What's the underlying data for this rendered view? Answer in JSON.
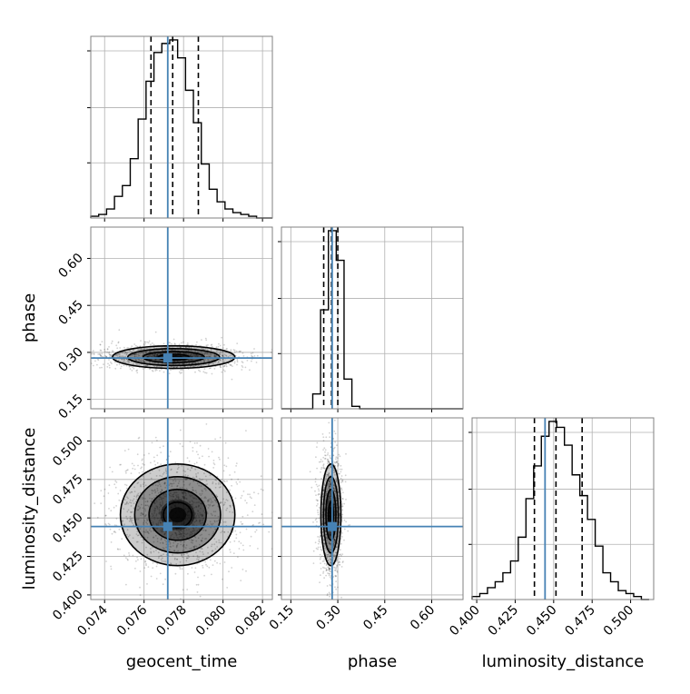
{
  "chart_data": {
    "type": "corner",
    "parameters": [
      "geocent_time",
      "phase",
      "luminosity_distance"
    ],
    "truths": {
      "geocent_time": 0.0772,
      "phase": 0.282,
      "luminosity_distance": 0.4444
    },
    "quantiles": {
      "geocent_time": [
        0.07635,
        0.07745,
        0.07875
      ],
      "phase": [
        0.255,
        0.28,
        0.3
      ],
      "luminosity_distance": [
        0.4375,
        0.4515,
        0.4685
      ]
    },
    "axes": {
      "geocent_time": {
        "range": [
          0.0733,
          0.0825
        ],
        "ticks": [
          0.074,
          0.076,
          0.078,
          0.08,
          0.082
        ],
        "tick_labels": [
          "0.074",
          "0.076",
          "0.078",
          "0.080",
          "0.082"
        ]
      },
      "phase": {
        "range": [
          0.12,
          0.7
        ],
        "ticks": [
          0.15,
          0.3,
          0.45,
          0.6
        ],
        "tick_labels": [
          "0.15",
          "0.30",
          "0.45",
          "0.60"
        ]
      },
      "luminosity_distance": {
        "range": [
          0.397,
          0.515
        ],
        "ticks": [
          0.4,
          0.425,
          0.45,
          0.475,
          0.5
        ],
        "tick_labels": [
          "0.400",
          "0.425",
          "0.450",
          "0.475",
          "0.500"
        ]
      }
    },
    "histograms": {
      "geocent_time": {
        "edges": [
          0.0733,
          0.0737,
          0.0741,
          0.0745,
          0.0749,
          0.0753,
          0.0757,
          0.0761,
          0.0765,
          0.0769,
          0.0773,
          0.0777,
          0.0781,
          0.0785,
          0.0789,
          0.0793,
          0.0797,
          0.0801,
          0.0805,
          0.0809,
          0.0813,
          0.0817,
          0.0821,
          0.0825
        ],
        "counts": [
          1,
          2,
          5,
          12,
          18,
          33,
          55,
          76,
          92,
          97,
          99,
          89,
          71,
          53,
          30,
          16,
          9,
          5,
          3,
          2,
          1,
          0,
          0
        ]
      },
      "phase": {
        "edges": [
          0.12,
          0.145,
          0.17,
          0.195,
          0.22,
          0.245,
          0.27,
          0.295,
          0.32,
          0.345,
          0.37,
          0.395,
          0.42,
          0.445,
          0.47,
          0.495,
          0.52,
          0.545,
          0.57,
          0.595,
          0.62,
          0.645,
          0.67,
          0.7
        ],
        "counts": [
          0,
          0,
          0,
          0,
          6,
          40,
          72,
          60,
          12,
          1,
          0,
          0,
          0,
          0,
          0,
          0,
          0,
          0,
          0,
          0,
          0,
          0,
          0
        ]
      },
      "luminosity_distance": {
        "edges": [
          0.397,
          0.402,
          0.407,
          0.412,
          0.417,
          0.422,
          0.427,
          0.432,
          0.437,
          0.442,
          0.447,
          0.452,
          0.457,
          0.462,
          0.467,
          0.472,
          0.477,
          0.482,
          0.487,
          0.492,
          0.497,
          0.502,
          0.507,
          0.512
        ],
        "counts": [
          1,
          2,
          4,
          6,
          9,
          13,
          21,
          34,
          45,
          55,
          60,
          58,
          52,
          42,
          35,
          27,
          18,
          9,
          6,
          3,
          2,
          1,
          0
        ]
      }
    },
    "joint": [
      {
        "x": "geocent_time",
        "y": "phase",
        "center": [
          0.0775,
          0.285
        ],
        "spread": [
          0.00155,
          0.018
        ]
      },
      {
        "x": "geocent_time",
        "y": "luminosity_distance",
        "center": [
          0.0777,
          0.452
        ],
        "spread": [
          0.00145,
          0.0165
        ]
      },
      {
        "x": "phase",
        "y": "luminosity_distance",
        "center": [
          0.278,
          0.452
        ],
        "spread": [
          0.016,
          0.0165
        ]
      }
    ],
    "colors": {
      "truth": "#4682b4",
      "contour": "#000000",
      "grid": "#b0b0b0",
      "hist": "#000000"
    }
  }
}
